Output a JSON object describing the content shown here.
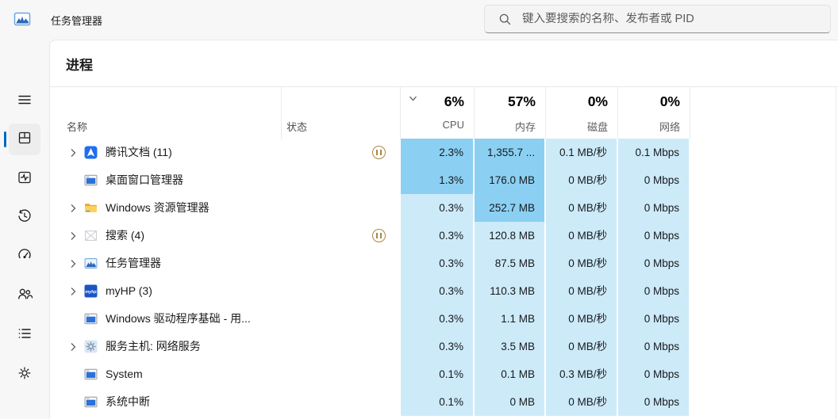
{
  "window": {
    "title": "任务管理器"
  },
  "search": {
    "placeholder": "键入要搜索的名称、发布者或 PID"
  },
  "sidebar": {
    "items": [
      {
        "id": "menu",
        "icon": "hamburger-icon",
        "selected": false
      },
      {
        "id": "processes",
        "icon": "processes-icon",
        "selected": true
      },
      {
        "id": "performance",
        "icon": "performance-icon",
        "selected": false
      },
      {
        "id": "app-history",
        "icon": "history-icon",
        "selected": false
      },
      {
        "id": "startup-apps",
        "icon": "gauge-icon",
        "selected": false
      },
      {
        "id": "users",
        "icon": "users-icon",
        "selected": false
      },
      {
        "id": "details",
        "icon": "details-icon",
        "selected": false
      },
      {
        "id": "services",
        "icon": "gear-icon",
        "selected": false
      }
    ]
  },
  "page": {
    "title": "进程"
  },
  "table": {
    "name_header": "名称",
    "status_header": "状态",
    "summary": [
      {
        "pct": "6%",
        "label": "CPU"
      },
      {
        "pct": "57%",
        "label": "内存"
      },
      {
        "pct": "0%",
        "label": "磁盘"
      },
      {
        "pct": "0%",
        "label": "网络"
      }
    ],
    "rows": [
      {
        "name": "腾讯文档 (11)",
        "icon": "tencent-docs-icon",
        "expandable": true,
        "status": "paused",
        "cpu": "2.3%",
        "mem": "1,355.7 ...",
        "disk": "0.1 MB/秒",
        "net": "0.1 Mbps",
        "heat": {
          "cpu": "dark",
          "mem": "dark",
          "disk": "light",
          "net": "light"
        }
      },
      {
        "name": "桌面窗口管理器",
        "icon": "window-icon",
        "expandable": false,
        "status": "",
        "cpu": "1.3%",
        "mem": "176.0 MB",
        "disk": "0 MB/秒",
        "net": "0 Mbps",
        "heat": {
          "cpu": "dark",
          "mem": "dark",
          "disk": "light",
          "net": "light"
        }
      },
      {
        "name": "Windows 资源管理器",
        "icon": "folder-icon",
        "expandable": true,
        "status": "",
        "cpu": "0.3%",
        "mem": "252.7 MB",
        "disk": "0 MB/秒",
        "net": "0 Mbps",
        "heat": {
          "cpu": "light",
          "mem": "dark",
          "disk": "light",
          "net": "light"
        }
      },
      {
        "name": "搜索 (4)",
        "icon": "placeholder-icon",
        "expandable": true,
        "status": "paused",
        "cpu": "0.3%",
        "mem": "120.8 MB",
        "disk": "0 MB/秒",
        "net": "0 Mbps",
        "heat": {
          "cpu": "light",
          "mem": "light",
          "disk": "light",
          "net": "light"
        }
      },
      {
        "name": "任务管理器",
        "icon": "taskmgr-icon",
        "expandable": true,
        "status": "",
        "cpu": "0.3%",
        "mem": "87.5 MB",
        "disk": "0 MB/秒",
        "net": "0 Mbps",
        "heat": {
          "cpu": "light",
          "mem": "light",
          "disk": "light",
          "net": "light"
        }
      },
      {
        "name": "myHP (3)",
        "icon": "myhp-icon",
        "expandable": true,
        "status": "",
        "cpu": "0.3%",
        "mem": "110.3 MB",
        "disk": "0 MB/秒",
        "net": "0 Mbps",
        "heat": {
          "cpu": "light",
          "mem": "light",
          "disk": "light",
          "net": "light"
        }
      },
      {
        "name": "Windows 驱动程序基础 - 用...",
        "icon": "window-icon",
        "expandable": false,
        "status": "",
        "cpu": "0.3%",
        "mem": "1.1 MB",
        "disk": "0 MB/秒",
        "net": "0 Mbps",
        "heat": {
          "cpu": "light",
          "mem": "light",
          "disk": "light",
          "net": "light"
        }
      },
      {
        "name": "服务主机: 网络服务",
        "icon": "service-gear-icon",
        "expandable": true,
        "status": "",
        "cpu": "0.3%",
        "mem": "3.5 MB",
        "disk": "0 MB/秒",
        "net": "0 Mbps",
        "heat": {
          "cpu": "light",
          "mem": "light",
          "disk": "light",
          "net": "light"
        }
      },
      {
        "name": "System",
        "icon": "window-icon",
        "expandable": false,
        "status": "",
        "cpu": "0.1%",
        "mem": "0.1 MB",
        "disk": "0.3 MB/秒",
        "net": "0 Mbps",
        "heat": {
          "cpu": "light",
          "mem": "light",
          "disk": "light",
          "net": "light"
        }
      },
      {
        "name": "系统中断",
        "icon": "window-icon",
        "expandable": false,
        "status": "",
        "cpu": "0.1%",
        "mem": "0 MB",
        "disk": "0 MB/秒",
        "net": "0 Mbps",
        "heat": {
          "cpu": "light",
          "mem": "light",
          "disk": "light",
          "net": "light"
        }
      }
    ]
  },
  "colors": {
    "accent": "#0067c0",
    "heat_dark": "#8bd0f2",
    "heat_light": "#cdeaf9",
    "pause_badge": "#ab8748"
  }
}
